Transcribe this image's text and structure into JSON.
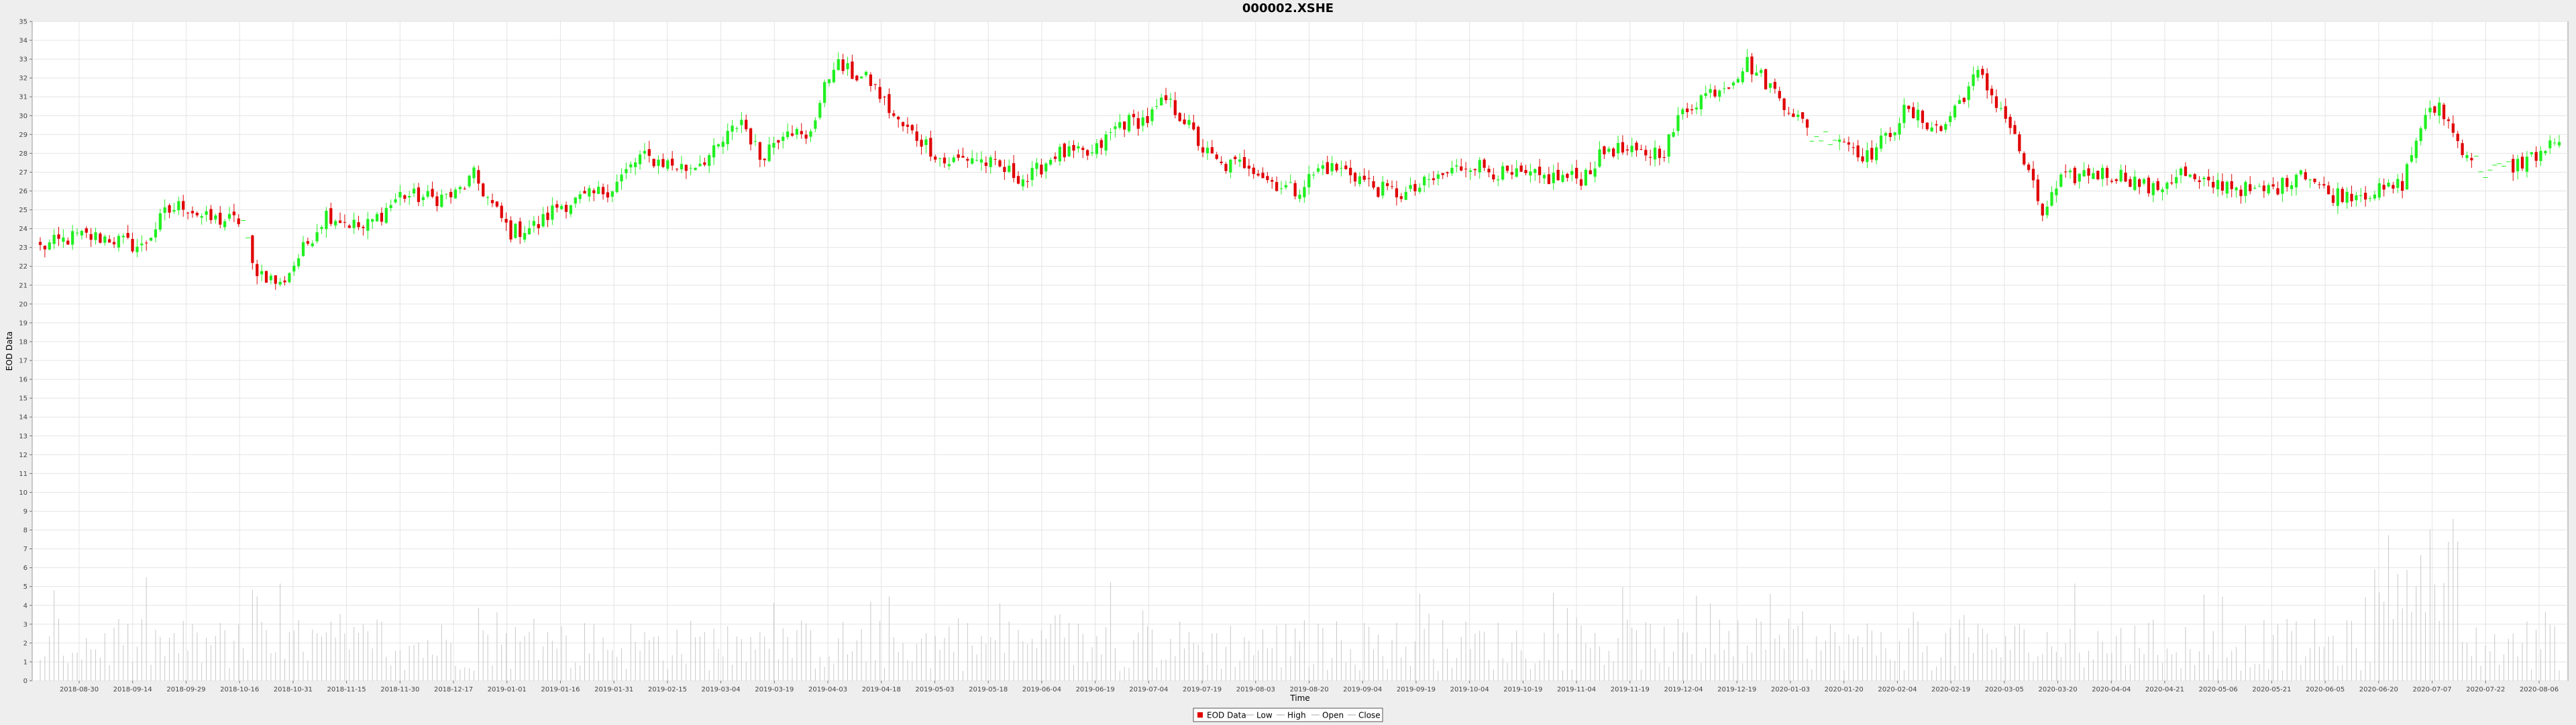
{
  "chart_data": {
    "type": "candlestick",
    "title": "000002.XSHE",
    "xlabel": "Time",
    "ylabel": "EOD Data",
    "ylim": [
      0,
      35
    ],
    "y_ticks": [
      0,
      1,
      2,
      3,
      4,
      5,
      6,
      7,
      8,
      9,
      10,
      11,
      12,
      13,
      14,
      15,
      16,
      17,
      18,
      19,
      20,
      21,
      22,
      23,
      24,
      25,
      26,
      27,
      28,
      29,
      30,
      31,
      32,
      33,
      34,
      35
    ],
    "x_tick_labels": [
      "2018-08-30",
      "2018-09-14",
      "2018-09-29",
      "2018-10-16",
      "2018-10-31",
      "2018-11-15",
      "2018-11-30",
      "2018-12-17",
      "2019-01-01",
      "2019-01-16",
      "2019-01-31",
      "2019-02-15",
      "2019-03-04",
      "2019-03-19",
      "2019-04-03",
      "2019-04-18",
      "2019-05-03",
      "2019-05-18",
      "2019-06-04",
      "2019-06-19",
      "2019-07-04",
      "2019-07-19",
      "2019-08-03",
      "2019-08-20",
      "2019-09-04",
      "2019-09-19",
      "2019-10-04",
      "2019-10-19",
      "2019-11-04",
      "2019-11-19",
      "2019-12-04",
      "2019-12-19",
      "2020-01-03",
      "2020-01-20",
      "2020-02-04",
      "2020-02-19",
      "2020-03-05",
      "2020-03-20",
      "2020-04-04",
      "2020-04-21",
      "2020-05-06",
      "2020-05-21",
      "2020-06-05",
      "2020-06-20",
      "2020-07-07",
      "2020-07-22",
      "2020-08-06"
    ],
    "price_anchors": [
      [
        0,
        23.0
      ],
      [
        8,
        23.6
      ],
      [
        15,
        23.5
      ],
      [
        22,
        23.0
      ],
      [
        27,
        24.8
      ],
      [
        31,
        25.3
      ],
      [
        36,
        24.5
      ],
      [
        44,
        24.4
      ],
      [
        46,
        22.0
      ],
      [
        52,
        21.0
      ],
      [
        56,
        22.5
      ],
      [
        62,
        24.8
      ],
      [
        70,
        24.0
      ],
      [
        74,
        24.8
      ],
      [
        78,
        25.8
      ],
      [
        85,
        25.6
      ],
      [
        90,
        25.8
      ],
      [
        94,
        26.8
      ],
      [
        98,
        25.2
      ],
      [
        102,
        23.8
      ],
      [
        108,
        24.2
      ],
      [
        112,
        25.2
      ],
      [
        118,
        25.6
      ],
      [
        124,
        26.2
      ],
      [
        130,
        27.8
      ],
      [
        134,
        27.6
      ],
      [
        140,
        27.2
      ],
      [
        146,
        28.0
      ],
      [
        152,
        29.8
      ],
      [
        156,
        27.8
      ],
      [
        162,
        29.5
      ],
      [
        166,
        28.6
      ],
      [
        172,
        32.8
      ],
      [
        176,
        32.2
      ],
      [
        180,
        31.8
      ],
      [
        186,
        29.6
      ],
      [
        192,
        28.5
      ],
      [
        196,
        27.5
      ],
      [
        202,
        27.8
      ],
      [
        208,
        27.2
      ],
      [
        214,
        26.6
      ],
      [
        220,
        28.0
      ],
      [
        228,
        27.9
      ],
      [
        234,
        29.6
      ],
      [
        240,
        29.8
      ],
      [
        244,
        30.8
      ],
      [
        248,
        29.8
      ],
      [
        252,
        28.2
      ],
      [
        256,
        27.3
      ],
      [
        262,
        27.5
      ],
      [
        266,
        26.6
      ],
      [
        272,
        26.0
      ],
      [
        278,
        27.3
      ],
      [
        284,
        27.0
      ],
      [
        290,
        26.1
      ],
      [
        296,
        25.8
      ],
      [
        302,
        26.6
      ],
      [
        310,
        27.5
      ],
      [
        318,
        26.8
      ],
      [
        326,
        26.7
      ],
      [
        334,
        26.7
      ],
      [
        340,
        28.3
      ],
      [
        346,
        27.9
      ],
      [
        352,
        28.2
      ],
      [
        356,
        30.2
      ],
      [
        360,
        31.0
      ],
      [
        366,
        31.8
      ],
      [
        370,
        32.8
      ],
      [
        374,
        31.8
      ],
      [
        380,
        30.2
      ],
      [
        384,
        28.9
      ],
      [
        390,
        28.9
      ],
      [
        396,
        27.8
      ],
      [
        400,
        28.8
      ],
      [
        404,
        30.2
      ],
      [
        408,
        29.8
      ],
      [
        412,
        29.2
      ],
      [
        416,
        30.8
      ],
      [
        420,
        32.2
      ],
      [
        426,
        30.0
      ],
      [
        430,
        27.5
      ],
      [
        434,
        24.8
      ],
      [
        438,
        26.5
      ],
      [
        444,
        27.0
      ],
      [
        452,
        26.8
      ],
      [
        458,
        26.0
      ],
      [
        464,
        27.0
      ],
      [
        468,
        26.3
      ],
      [
        474,
        26.4
      ],
      [
        480,
        25.9
      ],
      [
        486,
        26.3
      ],
      [
        490,
        27.2
      ],
      [
        496,
        25.8
      ],
      [
        502,
        25.9
      ],
      [
        508,
        26.0
      ],
      [
        512,
        26.4
      ],
      [
        516,
        29.5
      ],
      [
        520,
        30.6
      ],
      [
        524,
        28.6
      ],
      [
        530,
        27.0
      ],
      [
        536,
        27.3
      ],
      [
        540,
        27.8
      ],
      [
        546,
        28.6
      ]
    ],
    "gap_bars": [
      [
        44,
        46
      ],
      [
        384,
        390
      ],
      [
        528,
        536
      ]
    ],
    "volume_scale_max": 35,
    "volume_range": [
      0.5,
      9.0
    ],
    "legend": [
      "EOD Data",
      "Low",
      "High",
      "Open",
      "Close"
    ],
    "colors": {
      "up": "#21f021",
      "down": "#e00000",
      "plot_bg": "#ffffff",
      "page_bg": "#eeeeee",
      "grid": "#e4e4e4",
      "volume": "#c8c8c8"
    }
  }
}
